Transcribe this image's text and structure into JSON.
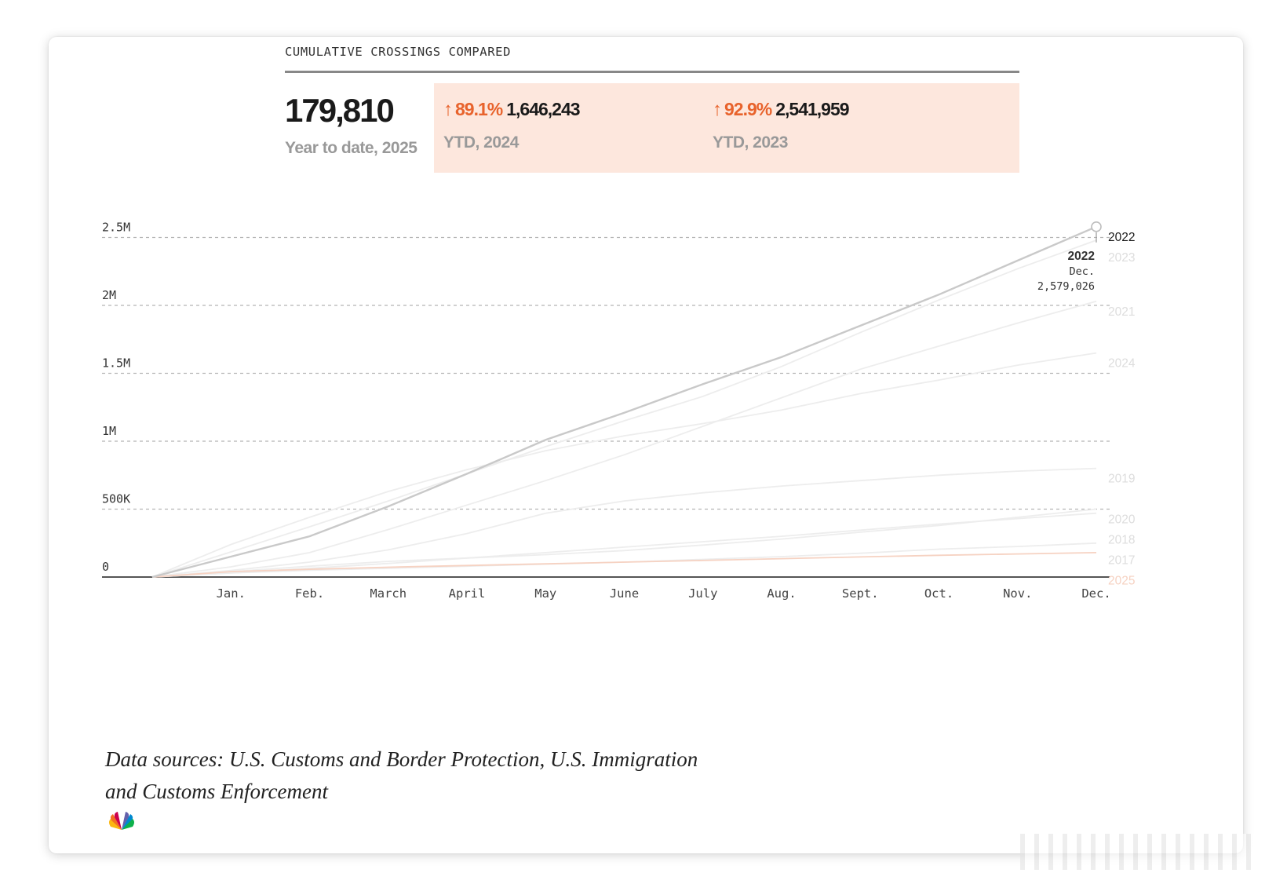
{
  "header": {
    "kicker": "CUMULATIVE CROSSINGS COMPARED",
    "main_value": "179,810",
    "main_label": "Year to date, 2025",
    "comparisons": [
      {
        "arrow": "↑",
        "pct": "89.1%",
        "value": "1,646,243",
        "label": "YTD, 2024"
      },
      {
        "arrow": "↑",
        "pct": "92.9%",
        "value": "2,541,959",
        "label": "YTD, 2023"
      }
    ]
  },
  "colors": {
    "accent": "#e8632c",
    "highlight_box": "#fde7dd",
    "series_active": "#c9c9c9",
    "series_faded": "#ededed",
    "series_2025": "#f6d2c2"
  },
  "chart_data": {
    "type": "line",
    "ylim": [
      0,
      2600000
    ],
    "grid": true,
    "y_ticks": [
      {
        "value": 0,
        "label": "0"
      },
      {
        "value": 500000,
        "label": "500K"
      },
      {
        "value": 1000000,
        "label": "1M"
      },
      {
        "value": 1500000,
        "label": "1.5M"
      },
      {
        "value": 2000000,
        "label": "2M"
      },
      {
        "value": 2500000,
        "label": "2.5M"
      }
    ],
    "x_labels": [
      "Jan.",
      "Feb.",
      "March",
      "April",
      "May",
      "June",
      "July",
      "Aug.",
      "Sept.",
      "Oct.",
      "Nov.",
      "Dec."
    ],
    "x_range": [
      0,
      12
    ],
    "series": [
      {
        "name": "2017",
        "highlight": false,
        "points": [
          [
            0,
            0
          ],
          [
            1,
            30000
          ],
          [
            2,
            50000
          ],
          [
            3,
            65000
          ],
          [
            4,
            80000
          ],
          [
            5,
            95000
          ],
          [
            6,
            110000
          ],
          [
            7,
            130000
          ],
          [
            8,
            150000
          ],
          [
            9,
            175000
          ],
          [
            10,
            205000
          ],
          [
            11,
            225000
          ],
          [
            12,
            250000
          ]
        ]
      },
      {
        "name": "2018",
        "highlight": false,
        "points": [
          [
            0,
            0
          ],
          [
            1,
            30000
          ],
          [
            2,
            65000
          ],
          [
            3,
            100000
          ],
          [
            4,
            140000
          ],
          [
            5,
            180000
          ],
          [
            6,
            220000
          ],
          [
            7,
            260000
          ],
          [
            8,
            300000
          ],
          [
            9,
            345000
          ],
          [
            10,
            390000
          ],
          [
            11,
            430000
          ],
          [
            12,
            470000
          ]
        ]
      },
      {
        "name": "2019",
        "highlight": false,
        "points": [
          [
            0,
            0
          ],
          [
            1,
            48000
          ],
          [
            2,
            110000
          ],
          [
            3,
            200000
          ],
          [
            4,
            320000
          ],
          [
            5,
            470000
          ],
          [
            6,
            560000
          ],
          [
            7,
            620000
          ],
          [
            8,
            670000
          ],
          [
            9,
            710000
          ],
          [
            10,
            750000
          ],
          [
            11,
            780000
          ],
          [
            12,
            800000
          ]
        ]
      },
      {
        "name": "2020",
        "highlight": false,
        "points": [
          [
            0,
            0
          ],
          [
            1,
            40000
          ],
          [
            2,
            80000
          ],
          [
            3,
            115000
          ],
          [
            4,
            140000
          ],
          [
            5,
            165000
          ],
          [
            6,
            195000
          ],
          [
            7,
            235000
          ],
          [
            8,
            280000
          ],
          [
            9,
            330000
          ],
          [
            10,
            380000
          ],
          [
            11,
            440000
          ],
          [
            12,
            500000
          ]
        ]
      },
      {
        "name": "2021",
        "highlight": false,
        "points": [
          [
            0,
            0
          ],
          [
            1,
            75000
          ],
          [
            2,
            180000
          ],
          [
            3,
            350000
          ],
          [
            4,
            530000
          ],
          [
            5,
            710000
          ],
          [
            6,
            900000
          ],
          [
            7,
            1110000
          ],
          [
            8,
            1320000
          ],
          [
            9,
            1530000
          ],
          [
            10,
            1700000
          ],
          [
            11,
            1870000
          ],
          [
            12,
            2030000
          ]
        ]
      },
      {
        "name": "2022",
        "highlight": true,
        "points": [
          [
            0,
            0
          ],
          [
            1,
            150000
          ],
          [
            2,
            300000
          ],
          [
            3,
            520000
          ],
          [
            4,
            760000
          ],
          [
            5,
            1010000
          ],
          [
            6,
            1210000
          ],
          [
            7,
            1420000
          ],
          [
            8,
            1620000
          ],
          [
            9,
            1850000
          ],
          [
            10,
            2080000
          ],
          [
            11,
            2330000
          ],
          [
            12,
            2579026
          ]
        ]
      },
      {
        "name": "2023",
        "highlight": false,
        "points": [
          [
            0,
            0
          ],
          [
            1,
            185000
          ],
          [
            2,
            370000
          ],
          [
            3,
            560000
          ],
          [
            4,
            760000
          ],
          [
            5,
            960000
          ],
          [
            6,
            1150000
          ],
          [
            7,
            1330000
          ],
          [
            8,
            1550000
          ],
          [
            9,
            1800000
          ],
          [
            10,
            2040000
          ],
          [
            11,
            2270000
          ],
          [
            12,
            2480000
          ]
        ]
      },
      {
        "name": "2024",
        "highlight": false,
        "points": [
          [
            0,
            0
          ],
          [
            1,
            240000
          ],
          [
            2,
            440000
          ],
          [
            3,
            630000
          ],
          [
            4,
            790000
          ],
          [
            5,
            930000
          ],
          [
            6,
            1040000
          ],
          [
            7,
            1130000
          ],
          [
            8,
            1230000
          ],
          [
            9,
            1350000
          ],
          [
            10,
            1450000
          ],
          [
            11,
            1560000
          ],
          [
            12,
            1650000
          ]
        ]
      },
      {
        "name": "2025",
        "highlight": false,
        "accent": true,
        "points": [
          [
            0,
            0
          ],
          [
            1,
            40000
          ],
          [
            2,
            57000
          ],
          [
            3,
            72000
          ],
          [
            4,
            85000
          ],
          [
            5,
            97000
          ],
          [
            6,
            110000
          ],
          [
            7,
            122000
          ],
          [
            8,
            135000
          ],
          [
            9,
            148000
          ],
          [
            10,
            160000
          ],
          [
            11,
            170000
          ],
          [
            12,
            179810
          ]
        ]
      }
    ],
    "annotation": {
      "series": "2022",
      "year": "2022",
      "month": "Dec.",
      "value": "2,579,026"
    }
  },
  "footer": {
    "source_line1": "Data sources: U.S. Customs and Border Protection, U.S. Immigration",
    "source_line2": "and Customs Enforcement"
  }
}
